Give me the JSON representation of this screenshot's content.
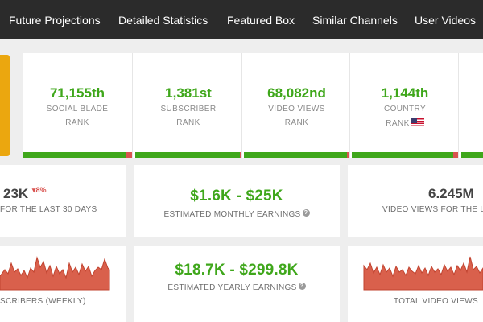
{
  "nav": {
    "items": [
      "Future Projections",
      "Detailed Statistics",
      "Featured Box",
      "Similar Channels",
      "User Videos"
    ]
  },
  "ranks": [
    {
      "value": "71,155th",
      "line1": "SOCIAL BLADE",
      "line2": "RANK",
      "flag": false
    },
    {
      "value": "1,381st",
      "line1": "SUBSCRIBER",
      "line2": "RANK",
      "flag": false
    },
    {
      "value": "68,082nd",
      "line1": "VIDEO VIEWS",
      "line2": "RANK",
      "flag": false
    },
    {
      "value": "1,144th",
      "line1": "COUNTRY",
      "line2": "RANK",
      "flag": true,
      "flag_icon": "us-flag-icon"
    }
  ],
  "subs_card": {
    "value": "23K",
    "trend": "8%",
    "trend_direction": "down",
    "label": "FOR THE LAST 30 DAYS"
  },
  "monthly": {
    "value": "$1.6K  -  $25K",
    "label": "ESTIMATED MONTHLY EARNINGS",
    "help_icon": "help-icon"
  },
  "views_card": {
    "value": "6.245M",
    "label": "VIDEO VIEWS FOR THE LA"
  },
  "subs_chart": {
    "label": "SCRIBERS (WEEKLY)"
  },
  "yearly": {
    "value": "$18.7K  -  $299.8K",
    "label": "ESTIMATED YEARLY EARNINGS",
    "help_icon": "help-icon"
  },
  "views_chart": {
    "label": "TOTAL VIDEO VIEWS"
  },
  "colors": {
    "nav_bg": "#2b2b2b",
    "accent_green": "#3fa71b",
    "accent_red": "#d9534f",
    "orange": "#eba70f",
    "chart_fill": "#d9604c"
  }
}
